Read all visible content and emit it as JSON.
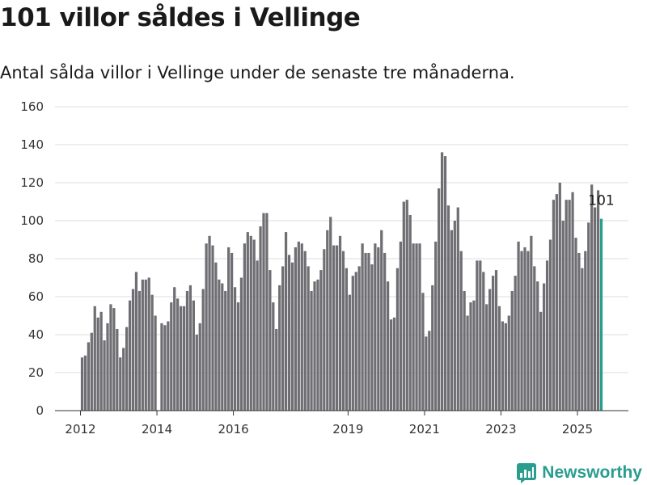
{
  "page": {
    "title": "101 villor såldes i Vellinge",
    "subtitle": "Antal sålda villor i Vellinge under de senaste tre månaderna."
  },
  "brand": {
    "name": "Newsworthy",
    "icon": "newsworthy-logo-icon",
    "color": "#2a9d8f"
  },
  "colors": {
    "bar": "#6e6e73",
    "highlight": "#2a9d8f",
    "grid": "#dddddd"
  },
  "chart_data": {
    "type": "bar",
    "title": "101 villor såldes i Vellinge",
    "subtitle": "Antal sålda villor i Vellinge under de senaste tre månaderna.",
    "xlabel": "",
    "ylabel": "",
    "ylim": [
      0,
      160
    ],
    "yticks": [
      0,
      20,
      40,
      60,
      80,
      100,
      120,
      140,
      160
    ],
    "xticks": [
      "2012",
      "2014",
      "2016",
      "2019",
      "2021",
      "2023",
      "2025"
    ],
    "grid": true,
    "series": [
      {
        "values": [
          28,
          29,
          36,
          41,
          55,
          49,
          52,
          37,
          46,
          56,
          54,
          43,
          28,
          33,
          44,
          58,
          64,
          73,
          63,
          69,
          69,
          70,
          61,
          50,
          null,
          46,
          45,
          47,
          57,
          65,
          59,
          55,
          55,
          63,
          66,
          58,
          40,
          46,
          64,
          88,
          92,
          87,
          78,
          69,
          67,
          63,
          86,
          83,
          65,
          57,
          70,
          88,
          94,
          92,
          90,
          79,
          97,
          104,
          104,
          74,
          57,
          43,
          66,
          76,
          94,
          82,
          78,
          86,
          89,
          88,
          84,
          76,
          63,
          68,
          69,
          74,
          85,
          95,
          102,
          87,
          87,
          92,
          84,
          75,
          61,
          71,
          73,
          76,
          88,
          83,
          83,
          77,
          88,
          86,
          95,
          83,
          68,
          48,
          49,
          75,
          89,
          110,
          111,
          103,
          88,
          88,
          88,
          62,
          39,
          42,
          66,
          89,
          117,
          136,
          134,
          108,
          95,
          100,
          107,
          84,
          63,
          50,
          57,
          58,
          79,
          79,
          73,
          56,
          64,
          71,
          74,
          55,
          47,
          46,
          50,
          63,
          71,
          89,
          84,
          86,
          84,
          92,
          76,
          68,
          52,
          67,
          79,
          90,
          111,
          114,
          120,
          100,
          111,
          111,
          115,
          91,
          83,
          75,
          84,
          99,
          119,
          107,
          116,
          101
        ],
        "highlight_last": true
      }
    ],
    "last_value_label": "101",
    "start": "2012-01",
    "frequency": "monthly"
  }
}
